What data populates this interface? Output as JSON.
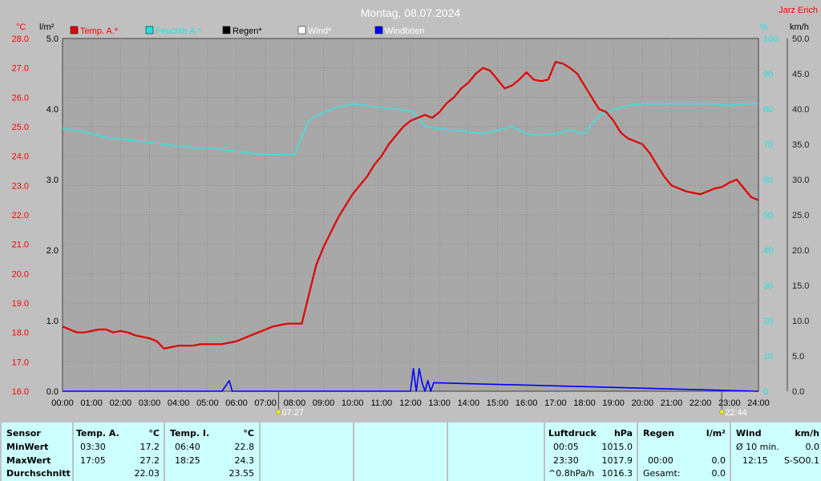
{
  "header": {
    "title": "Montag, 08.07.2024",
    "brand": "Jarz Erich"
  },
  "axes": {
    "temp_unit": "°C",
    "rain_unit": "l/m²",
    "hum_unit": "%",
    "wind_unit": "km/h",
    "temp_ticks": [
      "28.0",
      "27.0",
      "26.0",
      "25.0",
      "24.0",
      "23.0",
      "22.0",
      "21.0",
      "20.0",
      "19.0",
      "18.0",
      "17.0",
      "16.0"
    ],
    "rain_ticks": [
      "5.0",
      "4.0",
      "3.0",
      "2.0",
      "1.0",
      "0.0"
    ],
    "hum_ticks": [
      "100",
      "90",
      "80",
      "70",
      "60",
      "50",
      "40",
      "30",
      "20",
      "10",
      "0"
    ],
    "wind_ticks": [
      "50.0",
      "45.0",
      "40.0",
      "35.0",
      "30.0",
      "25.0",
      "20.0",
      "15.0",
      "10.0",
      "5.0",
      "0.0"
    ],
    "time_ticks": [
      "00:00",
      "01:00",
      "02:00",
      "03:00",
      "04:00",
      "05:00",
      "06:00",
      "07:00",
      "08:00",
      "09:00",
      "10:00",
      "11:00",
      "12:00",
      "13:00",
      "14:00",
      "15:00",
      "16:00",
      "17:00",
      "18:00",
      "19:00",
      "20:00",
      "21:00",
      "22:00",
      "23:00",
      "24:00"
    ]
  },
  "legend": [
    {
      "label": "Temp. A.*",
      "color": "#e00000",
      "text_color": "#ff0000"
    },
    {
      "label": "Feuchte A.*",
      "color": "#20e0e0",
      "text_color": "#20e0e0"
    },
    {
      "label": "Regen*",
      "color": "#000000",
      "text_color": "#000000"
    },
    {
      "label": "Wind*",
      "color": "#ffffff",
      "text_color": "#ffffff"
    },
    {
      "label": "Windböen",
      "color": "#0000ff",
      "text_color": "#ffffff"
    }
  ],
  "sun": {
    "sunrise": "07:27",
    "sunset": "22:44"
  },
  "colors": {
    "temp": "#e00000",
    "humidity": "#40e0e0",
    "gust": "#0000ff",
    "grid": "#8a8a8a",
    "plot_bg": "#a8a8a8",
    "table_bg": "#ccffff"
  },
  "chart_data": {
    "type": "line",
    "title": "Montag, 08.07.2024",
    "x_unit": "hour of day",
    "xlim": [
      0,
      24
    ],
    "series": [
      {
        "name": "Temp. A.*",
        "axis": "°C",
        "ylim": [
          16,
          28
        ],
        "x": [
          0,
          0.25,
          0.5,
          0.75,
          1,
          1.25,
          1.5,
          1.75,
          2,
          2.25,
          2.5,
          2.75,
          3,
          3.25,
          3.5,
          3.75,
          4,
          4.25,
          4.5,
          4.75,
          5,
          5.25,
          5.5,
          5.75,
          6,
          6.25,
          6.5,
          6.75,
          7,
          7.25,
          7.5,
          7.75,
          7.95,
          8.0,
          8.1,
          8.25,
          8.5,
          8.75,
          9,
          9.25,
          9.5,
          9.75,
          10,
          10.25,
          10.5,
          10.75,
          11,
          11.25,
          11.5,
          11.75,
          12,
          12.25,
          12.5,
          12.75,
          13,
          13.25,
          13.5,
          13.75,
          14,
          14.25,
          14.5,
          14.75,
          15,
          15.25,
          15.5,
          15.75,
          16,
          16.25,
          16.5,
          16.75,
          17,
          17.25,
          17.5,
          17.75,
          18,
          18.25,
          18.5,
          18.75,
          19,
          19.25,
          19.5,
          19.75,
          20,
          20.25,
          20.5,
          20.75,
          21,
          21.25,
          21.5,
          21.75,
          22,
          22.25,
          22.5,
          22.75,
          23,
          23.25,
          23.5,
          23.75,
          24
        ],
        "values": [
          18.2,
          18.1,
          18.0,
          18.0,
          18.05,
          18.1,
          18.1,
          18.0,
          18.05,
          18.0,
          17.9,
          17.85,
          17.8,
          17.7,
          17.45,
          17.5,
          17.55,
          17.55,
          17.55,
          17.6,
          17.6,
          17.6,
          17.6,
          17.65,
          17.7,
          17.8,
          17.9,
          18.0,
          18.1,
          18.2,
          18.25,
          18.3,
          18.3,
          18.3,
          18.3,
          18.3,
          19.3,
          20.3,
          20.9,
          21.4,
          21.9,
          22.3,
          22.7,
          23.0,
          23.3,
          23.7,
          24.0,
          24.4,
          24.7,
          25.0,
          25.2,
          25.3,
          25.4,
          25.3,
          25.5,
          25.8,
          26.0,
          26.3,
          26.5,
          26.8,
          27.0,
          26.9,
          26.6,
          26.3,
          26.4,
          26.6,
          26.85,
          26.6,
          26.55,
          26.6,
          27.2,
          27.15,
          27.0,
          26.8,
          26.4,
          26.0,
          25.6,
          25.5,
          25.2,
          24.8,
          24.6,
          24.5,
          24.4,
          24.1,
          23.7,
          23.3,
          23.0,
          22.9,
          22.8,
          22.75,
          22.7,
          22.8,
          22.9,
          22.95,
          23.1,
          23.2,
          22.9,
          22.6,
          22.5
        ]
      },
      {
        "name": "Feuchte A.*",
        "axis": "%",
        "ylim": [
          0,
          100
        ],
        "x": [
          0,
          0.5,
          1,
          1.5,
          2,
          2.5,
          3,
          3.5,
          4,
          4.5,
          5,
          5.5,
          6,
          6.5,
          7,
          7.5,
          8,
          8.25,
          8.5,
          9,
          9.5,
          10,
          10.5,
          11,
          11.5,
          12,
          12.25,
          12.5,
          13,
          13.5,
          14,
          14.5,
          15,
          15.5,
          16,
          16.5,
          17,
          17.5,
          18,
          18.5,
          19,
          19.5,
          20,
          20.5,
          21,
          21.5,
          22,
          22.5,
          23,
          23.5,
          24
        ],
        "values": [
          74.5,
          74,
          73,
          72,
          71.5,
          71,
          70.5,
          70,
          69.5,
          69,
          69,
          68.5,
          68,
          67.5,
          67,
          67,
          67,
          72,
          77,
          79,
          80.5,
          81.5,
          81,
          80.5,
          80,
          79.5,
          78,
          75,
          74.5,
          74,
          73.5,
          73,
          74,
          75,
          73,
          72.5,
          73,
          74,
          73,
          78,
          80,
          81,
          81.5,
          81.5,
          81.5,
          81.5,
          81.5,
          81.5,
          81,
          81.5,
          81.5
        ]
      },
      {
        "name": "Windböen",
        "axis": "km/h",
        "ylim": [
          0,
          50
        ],
        "x": [
          0,
          5.5,
          5.75,
          5.85,
          6.0,
          12.0,
          12.1,
          12.2,
          12.3,
          12.4,
          12.5,
          12.6,
          12.7,
          12.8,
          24
        ],
        "values": [
          0,
          0,
          1.5,
          0,
          0,
          0,
          3.2,
          0,
          3.2,
          1.2,
          0,
          1.5,
          0,
          1.2,
          0
        ]
      }
    ],
    "rain_axis": {
      "unit": "l/m²",
      "ylim": [
        0,
        5
      ]
    }
  },
  "stats": {
    "sensor": {
      "header": "Sensor",
      "rows": [
        "MinWert",
        "MaxWert",
        "Durchschnitt"
      ]
    },
    "temp_a": {
      "header": "Temp. A.",
      "unit": "°C",
      "rows": [
        [
          "03:30",
          "17.2"
        ],
        [
          "17:05",
          "27.2"
        ],
        [
          "",
          "22.03"
        ]
      ]
    },
    "temp_i": {
      "header": "Temp. I.",
      "unit": "°C",
      "rows": [
        [
          "06:40",
          "22.8"
        ],
        [
          "18:25",
          "24.3"
        ],
        [
          "",
          "23.55"
        ]
      ]
    },
    "pressure": {
      "header": "Luftdruck",
      "unit": "hPa",
      "rows": [
        [
          "00:05",
          "1015.0"
        ],
        [
          "23:30",
          "1017.9"
        ],
        [
          "^0.8hPa/h",
          "1016.3"
        ]
      ]
    },
    "rain": {
      "header": "Regen",
      "unit": "l/m²",
      "rows": [
        [
          "",
          ""
        ],
        [
          "00:00",
          "0.0"
        ],
        [
          "Gesamt:",
          "0.0"
        ]
      ]
    },
    "wind": {
      "header": "Wind",
      "unit": "km/h",
      "rows": [
        [
          "Ø 10 min.",
          "0.0"
        ],
        [
          "12:15",
          "S-SO",
          "0.1"
        ],
        [
          "",
          ""
        ]
      ]
    }
  }
}
